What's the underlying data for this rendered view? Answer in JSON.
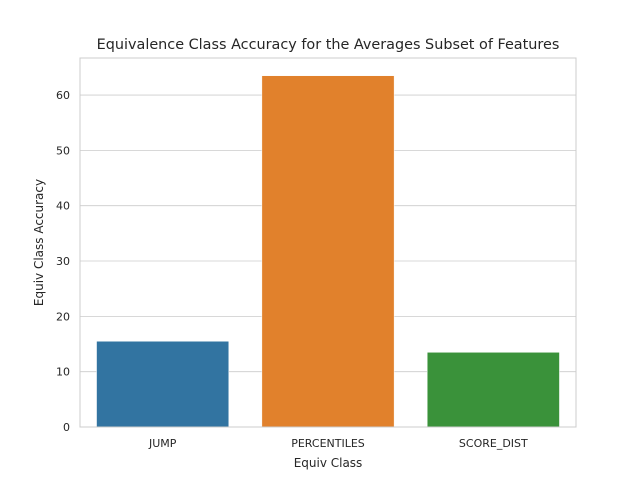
{
  "chart_data": {
    "type": "bar",
    "title": "Equivalence Class Accuracy for the Averages Subset of Features",
    "xlabel": "Equiv Class",
    "ylabel": "Equiv Class Accuracy",
    "categories": [
      "JUMP",
      "PERCENTILES",
      "SCORE_DIST"
    ],
    "values": [
      15.5,
      63.5,
      13.5
    ],
    "colors": [
      "#3274a1",
      "#e1812c",
      "#3a923a"
    ],
    "ylim": [
      0,
      66.7
    ],
    "yticks": [
      0,
      10,
      20,
      30,
      40,
      50,
      60
    ],
    "grid": "horizontal",
    "legend": "none"
  }
}
